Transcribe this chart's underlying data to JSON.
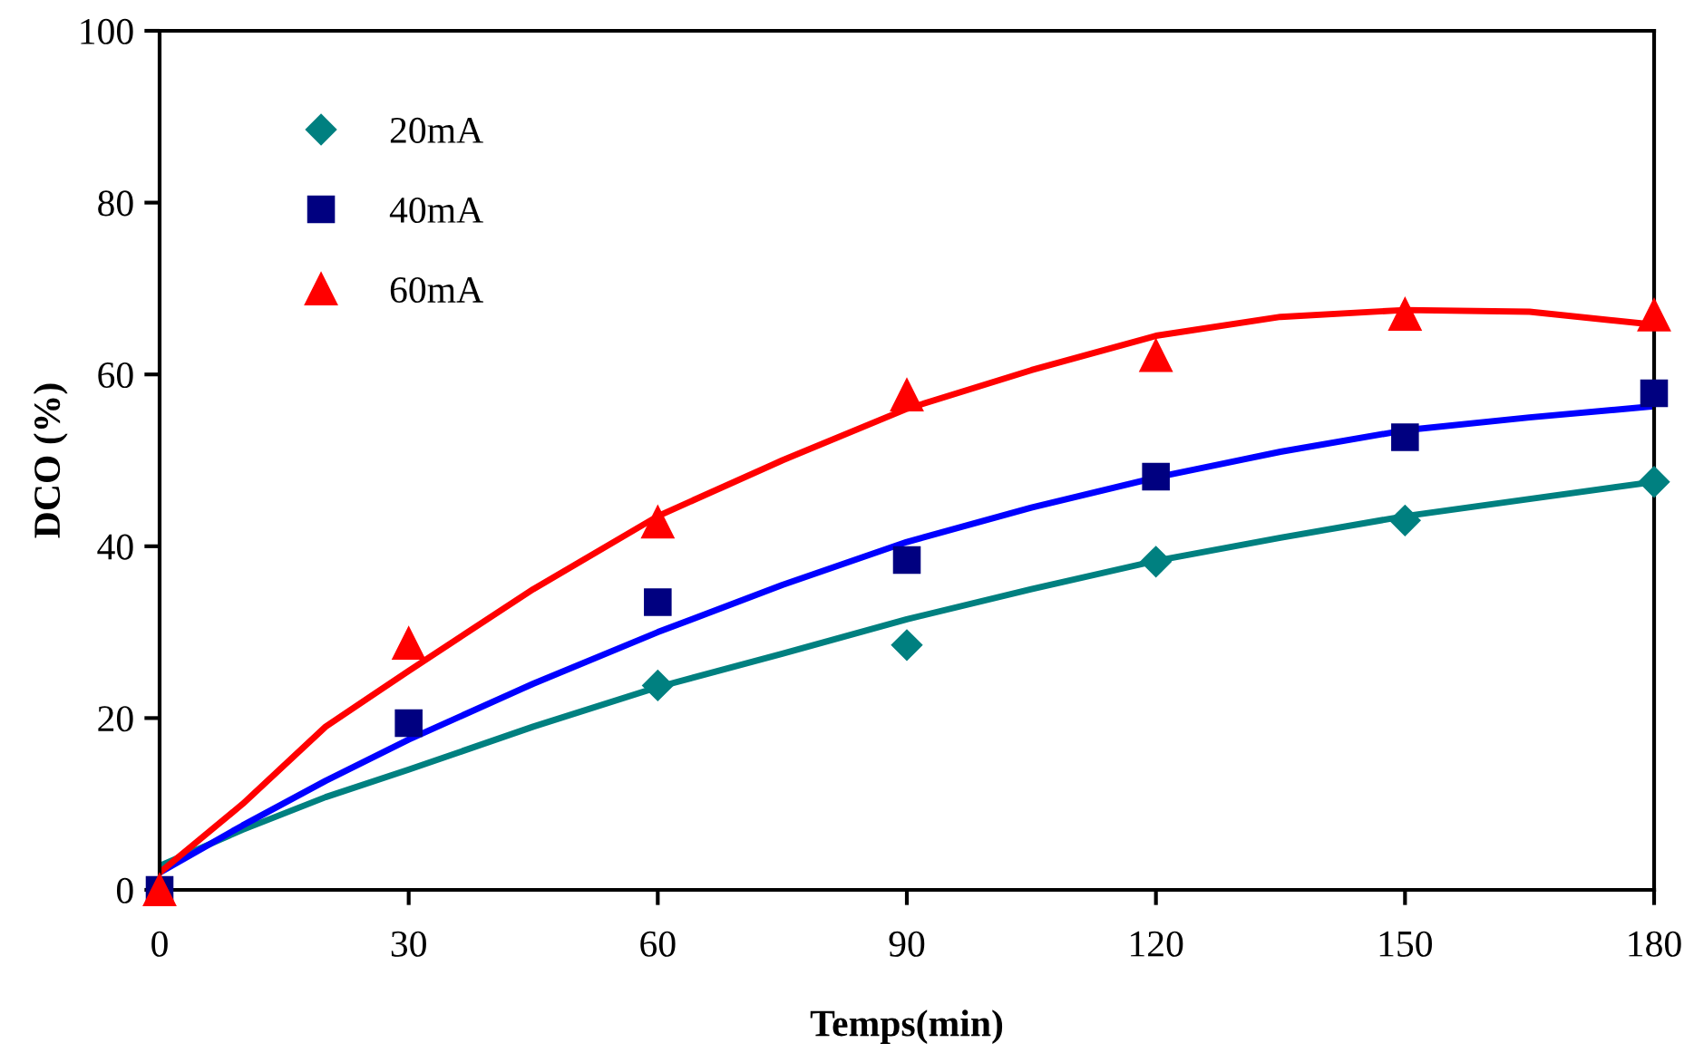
{
  "chart_data": {
    "type": "scatter",
    "xlabel": "Temps(min)",
    "ylabel": "DCO (%)",
    "xlim": [
      0,
      180
    ],
    "xticks": [
      0,
      30,
      60,
      90,
      120,
      150,
      180
    ],
    "ylim": [
      0,
      100
    ],
    "yticks": [
      0,
      20,
      40,
      60,
      80,
      100
    ],
    "grid": false,
    "legend": "top left",
    "series": [
      {
        "type": "line",
        "color": "#008080",
        "marker": "none",
        "line_style": "solid",
        "x": [
          0,
          10,
          20,
          30,
          45,
          60,
          75,
          90,
          105,
          120,
          135,
          150,
          165,
          180
        ],
        "values": [
          2.8,
          7,
          10.8,
          14,
          19,
          23.6,
          27.5,
          31.5,
          35,
          38.3,
          41,
          43.5,
          45.5,
          47.5
        ]
      },
      {
        "type": "line",
        "color": "#0000ff",
        "marker": "none",
        "line_style": "solid",
        "x": [
          0,
          10,
          20,
          30,
          45,
          60,
          75,
          90,
          105,
          120,
          135,
          150,
          165,
          180
        ],
        "values": [
          2,
          7.5,
          12.7,
          17.5,
          24,
          30,
          35.5,
          40.5,
          44.5,
          48,
          51,
          53.5,
          55,
          56.3
        ]
      },
      {
        "type": "line",
        "color": "#ff0000",
        "marker": "none",
        "line_style": "solid",
        "x": [
          0,
          10,
          20,
          30,
          45,
          60,
          75,
          90,
          105,
          120,
          135,
          150,
          165,
          180
        ],
        "values": [
          2,
          10,
          19,
          25.5,
          35,
          43.5,
          50,
          56,
          60.5,
          64.5,
          66.7,
          67.5,
          67.3,
          65.8
        ]
      },
      {
        "name": "20mA",
        "color": "#008080",
        "marker": "diamond",
        "x": [
          60,
          90,
          120,
          150,
          180
        ],
        "values": [
          23.8,
          28.5,
          38.2,
          43,
          47.5
        ]
      },
      {
        "name": "40mA",
        "color": "#000080",
        "marker": "square",
        "x": [
          0,
          30,
          60,
          90,
          120,
          150,
          180
        ],
        "values": [
          0,
          19.4,
          33.5,
          38.4,
          48.1,
          52.7,
          57.8
        ]
      },
      {
        "name": "60mA",
        "color": "#ff0000",
        "marker": "triangle",
        "x": [
          0,
          30,
          60,
          90,
          120,
          150,
          180
        ],
        "values": [
          0,
          28.7,
          42.8,
          57.6,
          62.2,
          67,
          66.9
        ]
      }
    ]
  }
}
